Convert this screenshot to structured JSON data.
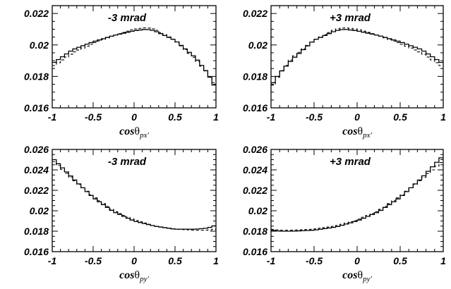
{
  "chart_data": [
    {
      "type": "line",
      "annotation": "-3 mrad",
      "xlabel": {
        "main": "cos",
        "theta": "θ",
        "sub": "px′"
      },
      "xlim": [
        -1,
        1
      ],
      "ylim": [
        0.016,
        0.0225
      ],
      "xticks": [
        "-1",
        "-0.5",
        "0",
        "0.5",
        "1"
      ],
      "yticks": [
        "0.016",
        "0.018",
        "0.02",
        "0.022"
      ],
      "series": [
        {
          "style": "solid",
          "x": [
            -1,
            -0.75,
            -0.5,
            -0.25,
            0,
            0.15,
            0.25,
            0.5,
            0.75,
            0.9,
            1
          ],
          "y": [
            0.0188,
            0.0197,
            0.0202,
            0.0206,
            0.0209,
            0.021,
            0.0209,
            0.0203,
            0.0192,
            0.0182,
            0.0172
          ]
        },
        {
          "style": "dashed",
          "x": [
            -1,
            -0.75,
            -0.5,
            -0.25,
            0,
            0.15,
            0.25,
            0.5,
            0.75,
            0.9,
            1
          ],
          "y": [
            0.0186,
            0.0195,
            0.0201,
            0.0206,
            0.021,
            0.0211,
            0.021,
            0.0203,
            0.0191,
            0.0182,
            0.0174
          ]
        }
      ]
    },
    {
      "type": "line",
      "annotation": "+3 mrad",
      "xlabel": {
        "main": "cos",
        "theta": "θ",
        "sub": "px′"
      },
      "xlim": [
        -1,
        1
      ],
      "ylim": [
        0.016,
        0.0225
      ],
      "xticks": [
        "-1",
        "-0.5",
        "0",
        "0.5",
        "1"
      ],
      "yticks": [
        "0.016",
        "0.018",
        "0.02",
        "0.022"
      ],
      "series": [
        {
          "style": "solid",
          "x": [
            -1,
            -0.9,
            -0.75,
            -0.5,
            -0.25,
            -0.15,
            0,
            0.25,
            0.5,
            0.75,
            1
          ],
          "y": [
            0.0174,
            0.0182,
            0.0191,
            0.0203,
            0.0209,
            0.021,
            0.0209,
            0.0206,
            0.0202,
            0.0197,
            0.0188
          ]
        },
        {
          "style": "dashed",
          "x": [
            -1,
            -0.9,
            -0.75,
            -0.5,
            -0.25,
            -0.15,
            0,
            0.25,
            0.5,
            0.75,
            1
          ],
          "y": [
            0.0172,
            0.0182,
            0.0192,
            0.0203,
            0.021,
            0.0211,
            0.021,
            0.0206,
            0.0201,
            0.0195,
            0.0186
          ]
        }
      ]
    },
    {
      "type": "line",
      "annotation": "-3 mrad",
      "xlabel": {
        "main": "cos",
        "theta": "θ",
        "sub": "py′"
      },
      "xlim": [
        -1,
        1
      ],
      "ylim": [
        0.016,
        0.026
      ],
      "xticks": [
        "-1",
        "-0.5",
        "0",
        "0.5",
        "1"
      ],
      "yticks": [
        "0.016",
        "0.018",
        "0.02",
        "0.022",
        "0.024",
        "0.026"
      ],
      "series": [
        {
          "style": "solid",
          "x": [
            -1,
            -0.75,
            -0.5,
            -0.25,
            0,
            0.25,
            0.5,
            0.75,
            0.9,
            1
          ],
          "y": [
            0.0252,
            0.0232,
            0.0213,
            0.0199,
            0.019,
            0.0185,
            0.0182,
            0.0182,
            0.0183,
            0.0186
          ]
        },
        {
          "style": "dashed",
          "x": [
            -1,
            -0.75,
            -0.5,
            -0.25,
            0,
            0.25,
            0.5,
            0.75,
            0.9,
            1
          ],
          "y": [
            0.025,
            0.0231,
            0.0214,
            0.02,
            0.0191,
            0.0185,
            0.0182,
            0.0181,
            0.0181,
            0.0182
          ]
        }
      ]
    },
    {
      "type": "line",
      "annotation": "+3 mrad",
      "xlabel": {
        "main": "cos",
        "theta": "θ",
        "sub": "py′"
      },
      "xlim": [
        -1,
        1
      ],
      "ylim": [
        0.016,
        0.026
      ],
      "xticks": [
        "-1",
        "-0.5",
        "0",
        "0.5",
        "1"
      ],
      "yticks": [
        "0.016",
        "0.018",
        "0.02",
        "0.022",
        "0.024",
        "0.026"
      ],
      "series": [
        {
          "style": "solid",
          "x": [
            -1,
            -0.9,
            -0.75,
            -0.5,
            -0.25,
            0,
            0.25,
            0.5,
            0.75,
            1
          ],
          "y": [
            0.0181,
            0.018,
            0.018,
            0.0181,
            0.0184,
            0.019,
            0.0199,
            0.0213,
            0.0232,
            0.0254
          ]
        },
        {
          "style": "dashed",
          "x": [
            -1,
            -0.9,
            -0.75,
            -0.5,
            -0.25,
            0,
            0.25,
            0.5,
            0.75,
            1
          ],
          "y": [
            0.0182,
            0.0181,
            0.0181,
            0.0182,
            0.0185,
            0.0191,
            0.02,
            0.0214,
            0.0231,
            0.0249
          ]
        }
      ]
    }
  ]
}
